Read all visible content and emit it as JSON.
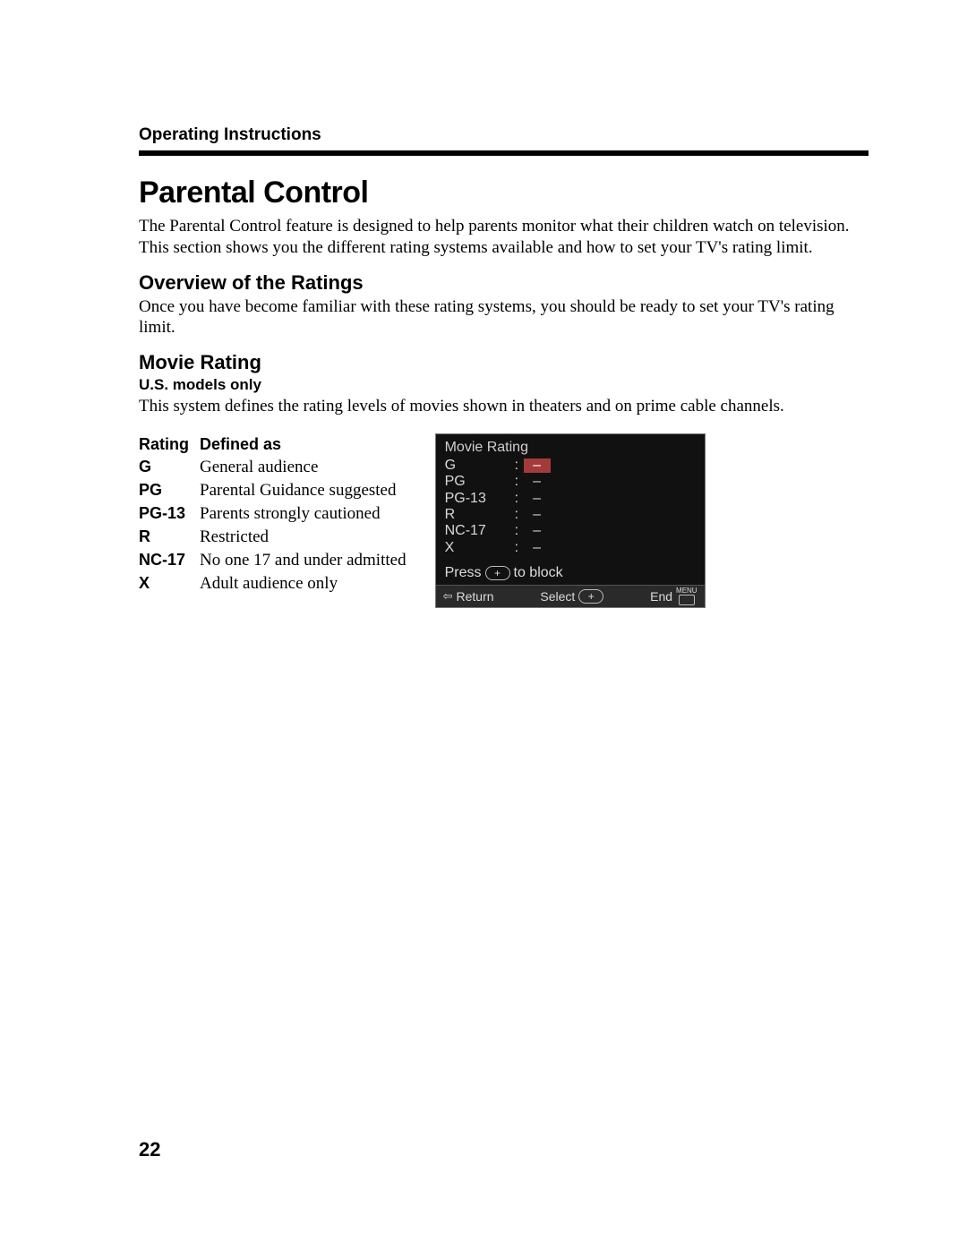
{
  "header": {
    "section_label": "Operating Instructions"
  },
  "title": "Parental Control",
  "intro": "The Parental Control feature is designed to help parents monitor what their children watch on television. This section shows you the different rating systems available and how to set your TV's rating limit.",
  "overview": {
    "heading": "Overview of the Ratings",
    "text": "Once you have become familiar with these rating systems, you should be ready to set your TV's rating limit."
  },
  "movie_rating": {
    "heading": "Movie Rating",
    "note": "U.S. models only",
    "text": "This system defines the rating levels of movies shown in theaters and on prime cable channels.",
    "table": {
      "columns": [
        "Rating",
        "Defined as"
      ],
      "rows": [
        [
          "G",
          "General audience"
        ],
        [
          "PG",
          "Parental Guidance suggested"
        ],
        [
          "PG-13",
          "Parents strongly cautioned"
        ],
        [
          "R",
          "Restricted"
        ],
        [
          "NC-17",
          "No one 17 and under admitted"
        ],
        [
          "X",
          "Adult audience only"
        ]
      ]
    }
  },
  "osd": {
    "title": "Movie Rating",
    "rows": [
      {
        "label": "G",
        "value": "–",
        "highlight": true
      },
      {
        "label": "PG",
        "value": "–",
        "highlight": false
      },
      {
        "label": "PG-13",
        "value": "–",
        "highlight": false
      },
      {
        "label": "R",
        "value": "–",
        "highlight": false
      },
      {
        "label": "NC-17",
        "value": "–",
        "highlight": false
      },
      {
        "label": "X",
        "value": "–",
        "highlight": false
      }
    ],
    "press_prefix": "Press",
    "press_suffix": "to block",
    "footer": {
      "return": "Return",
      "select": "Select",
      "end": "End",
      "menu_label": "MENU"
    },
    "colors": {
      "background": "#111111",
      "text": "#d8d8d8",
      "highlight_bg": "#a43b3b",
      "footer_bg": "#2a2a2a",
      "border": "#777777"
    }
  },
  "page_number": "22"
}
